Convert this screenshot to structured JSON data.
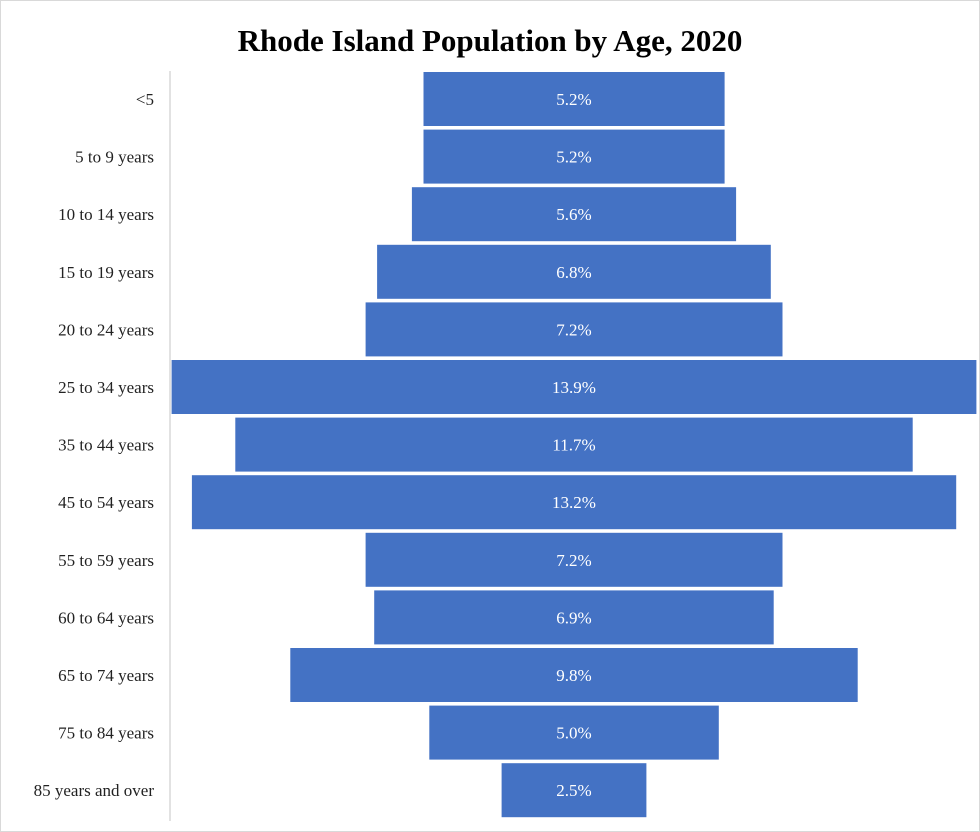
{
  "chart_data": {
    "type": "bar",
    "orientation": "horizontal-centered",
    "title": "Rhode Island Population by Age, 2020",
    "categories": [
      "<5",
      "5 to 9 years",
      "10 to 14 years",
      "15 to 19 years",
      "20 to 24 years",
      "25 to 34 years",
      "35 to 44 years",
      "45 to 54 years",
      "55 to 59 years",
      "60 to 64 years",
      "65 to 74 years",
      "75 to 84 years",
      "85 years and over"
    ],
    "values": [
      5.2,
      5.2,
      5.6,
      6.8,
      7.2,
      13.9,
      11.7,
      13.2,
      7.2,
      6.9,
      9.8,
      5.0,
      2.5
    ],
    "data_labels": [
      "5.2%",
      "5.2%",
      "5.6%",
      "6.8%",
      "7.2%",
      "13.9%",
      "11.7%",
      "13.2%",
      "7.2%",
      "6.9%",
      "9.8%",
      "5.0%",
      "2.5%"
    ],
    "bar_color": "#4472C4",
    "axis_line_color": "#d9d9d9",
    "grid": false,
    "legend": "none"
  }
}
